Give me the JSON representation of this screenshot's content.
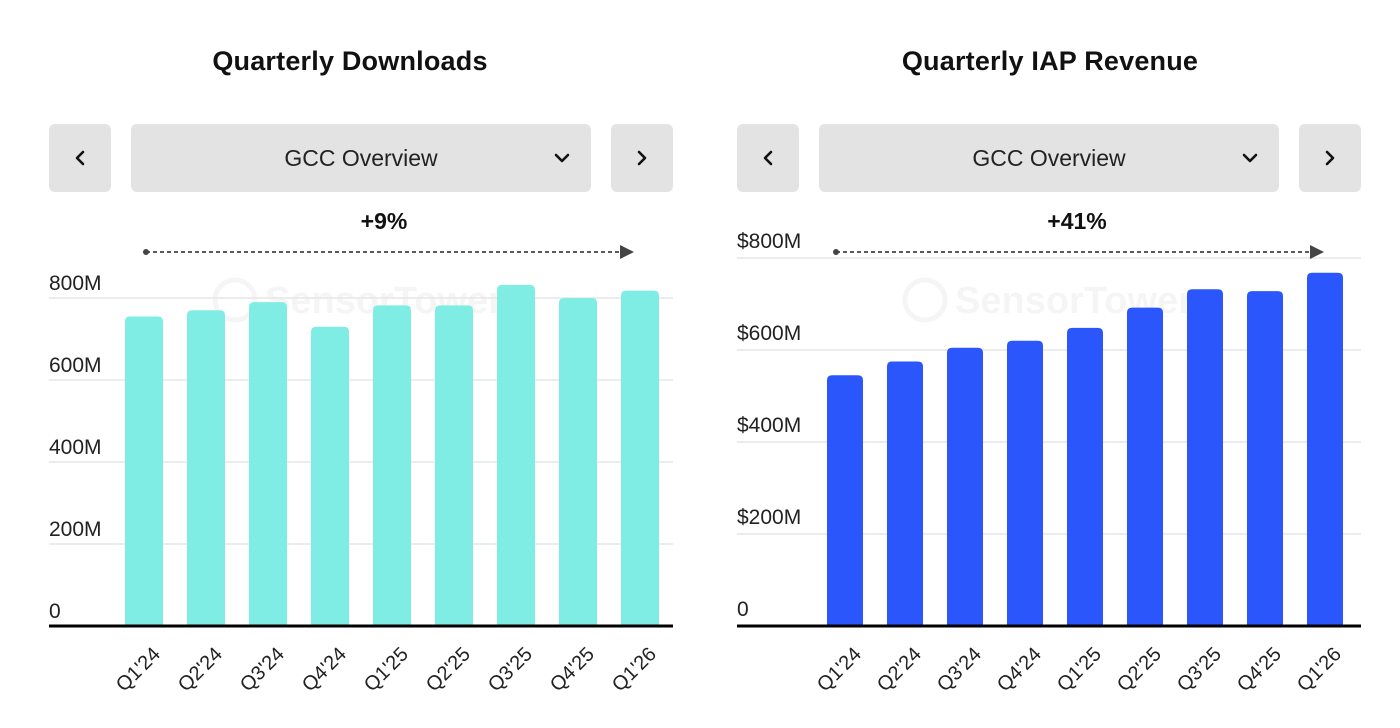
{
  "panels": [
    {
      "title": "Quarterly Downloads",
      "dropdown": {
        "label": "GCC Overview"
      },
      "prev_icon": "chevron-left-icon",
      "next_icon": "chevron-right-icon",
      "dropdown_icon": "chevron-down-icon",
      "change": "+9%",
      "watermark": "SensorTower"
    },
    {
      "title": "Quarterly IAP Revenue",
      "dropdown": {
        "label": "GCC Overview"
      },
      "prev_icon": "chevron-left-icon",
      "next_icon": "chevron-right-icon",
      "dropdown_icon": "chevron-down-icon",
      "change": "+41%",
      "watermark": "SensorTower"
    }
  ],
  "chart_data": [
    {
      "type": "bar",
      "title": "Quarterly Downloads",
      "categories": [
        "Q1'24",
        "Q2'24",
        "Q3'24",
        "Q4'24",
        "Q1'25",
        "Q2'25",
        "Q3'25",
        "Q4'25",
        "Q1'26"
      ],
      "values": [
        755,
        770,
        790,
        730,
        782,
        782,
        832,
        800,
        818
      ],
      "ylim": [
        0,
        800
      ],
      "yticks": [
        0,
        200,
        400,
        600,
        800
      ],
      "ytick_labels": [
        "0",
        "200M",
        "400M",
        "600M",
        "800M"
      ],
      "xlabel": "",
      "ylabel": "",
      "bar_color": "#80ede4",
      "grid": true,
      "annotation": "+9%"
    },
    {
      "type": "bar",
      "title": "Quarterly IAP Revenue",
      "categories": [
        "Q1'24",
        "Q2'24",
        "Q3'24",
        "Q4'24",
        "Q1'25",
        "Q2'25",
        "Q3'25",
        "Q4'25",
        "Q1'26"
      ],
      "values": [
        545,
        575,
        605,
        620,
        648,
        692,
        732,
        728,
        768
      ],
      "ylim": [
        0,
        800
      ],
      "yticks": [
        0,
        200,
        400,
        600,
        800
      ],
      "ytick_labels": [
        "0",
        "$200M",
        "$400M",
        "$600M",
        "$800M"
      ],
      "xlabel": "",
      "ylabel": "",
      "bar_color": "#2a56fb",
      "grid": true,
      "annotation": "+41%"
    }
  ]
}
